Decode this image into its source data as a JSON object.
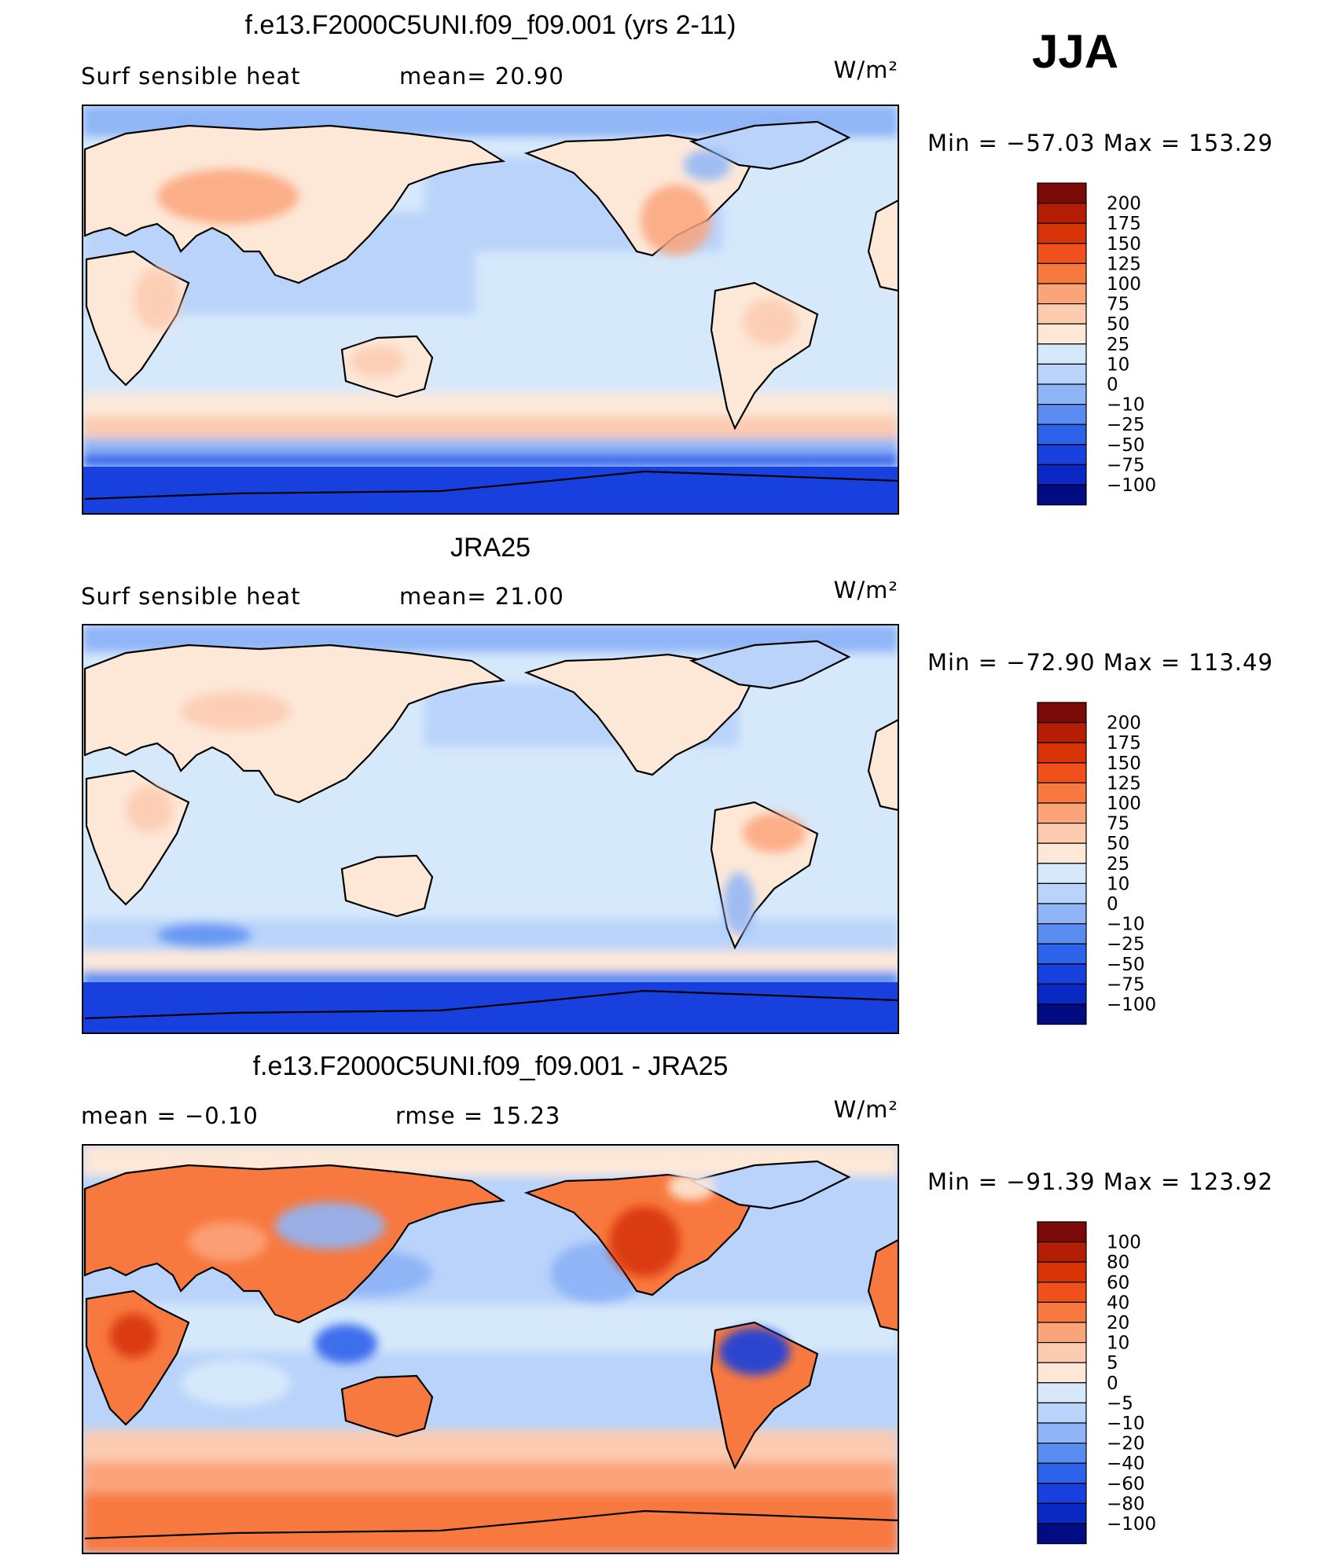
{
  "season": "JJA",
  "panels": [
    {
      "title": "f.e13.F2000C5UNI.f09_f09.001 (yrs 2-11)",
      "left_label": "Surf  sensible  heat",
      "stat_label": "mean=  20.90",
      "units": "W/m²",
      "minmax": "Min  =  −57.03  Max  =  153.29",
      "kind": "model"
    },
    {
      "title": "JRA25",
      "left_label": "Surf  sensible  heat",
      "stat_label": "mean=  21.00",
      "units": "W/m²",
      "minmax": "Min  =  −72.90  Max  =  113.49",
      "kind": "obs"
    },
    {
      "title": "f.e13.F2000C5UNI.f09_f09.001 - JRA25",
      "left_label": "mean  =    −0.10",
      "stat_label": "rmse  =    15.23",
      "units": "W/m²",
      "minmax": "Min  =  −91.39  Max  =  123.92",
      "kind": "diff"
    }
  ],
  "colorbars": {
    "field": {
      "levels": [
        "200",
        "175",
        "150",
        "125",
        "100",
        "75",
        "50",
        "25",
        "10",
        "0",
        "−10",
        "−25",
        "−50",
        "−75",
        "−100"
      ],
      "colors": [
        "#7a0a08",
        "#b41e05",
        "#d83408",
        "#f0501c",
        "#f8793f",
        "#fba47a",
        "#fccbb0",
        "#fde8d8",
        "#d6e9fb",
        "#b9d3fa",
        "#8fb5f7",
        "#5a8df1",
        "#2d62eb",
        "#1740df",
        "#0a28c4",
        "#020c82"
      ]
    },
    "diff": {
      "levels": [
        "100",
        "80",
        "60",
        "40",
        "20",
        "10",
        "5",
        "0",
        "−5",
        "−10",
        "−20",
        "−40",
        "−60",
        "−80",
        "−100"
      ],
      "colors": [
        "#7a0a08",
        "#b41e05",
        "#d83408",
        "#f0501c",
        "#f8793f",
        "#fba47a",
        "#fccbb0",
        "#fde8d8",
        "#d6e9fb",
        "#b9d3fa",
        "#8fb5f7",
        "#5a8df1",
        "#2d62eb",
        "#1740df",
        "#0a28c4",
        "#020c82"
      ]
    }
  }
}
